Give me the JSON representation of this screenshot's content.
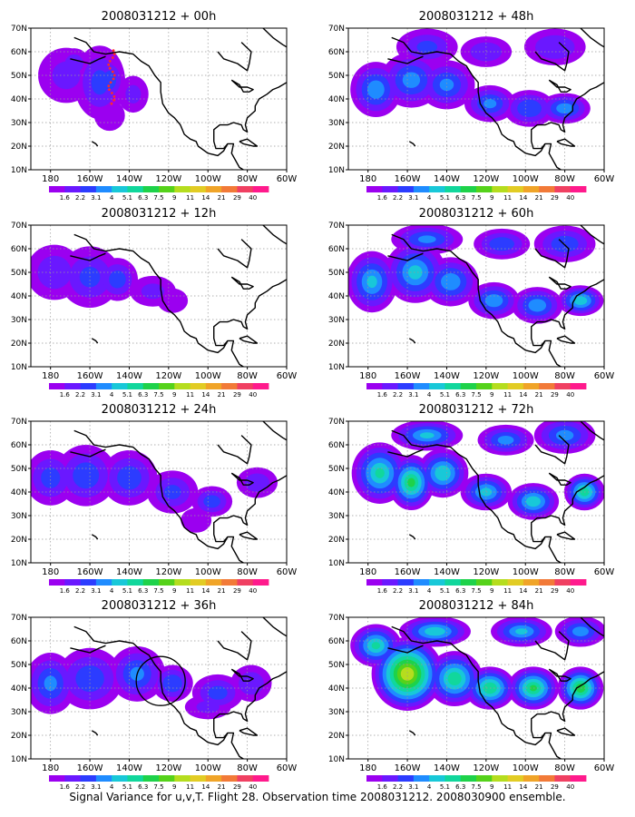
{
  "footer": "Signal Variance for u,v,T. Flight 28. Observation time 2008031212. 2008030900 ensemble.",
  "map": {
    "lat_ticks": [
      "70N",
      "60N",
      "50N",
      "40N",
      "30N",
      "20N",
      "10N"
    ],
    "lon_ticks": [
      "180",
      "160W",
      "140W",
      "120W",
      "100W",
      "80W",
      "60W"
    ]
  },
  "colorbar": {
    "labels": [
      "1.6",
      "2.2",
      "3.1",
      "4",
      "5.1",
      "6.3",
      "7.5",
      "9",
      "11",
      "14",
      "21",
      "29",
      "40"
    ],
    "colors": [
      "#9b00f0",
      "#6a18ff",
      "#2c3cff",
      "#1f8cff",
      "#18c8d8",
      "#11d79c",
      "#1ed24a",
      "#55d21a",
      "#b5dd1e",
      "#e2cc24",
      "#f0a428",
      "#f27a38",
      "#f04062",
      "#ff1a8c"
    ]
  },
  "chart_data": [
    {
      "type": "heatmap",
      "title": "2008031212 + 00h",
      "lead_hours": 0,
      "x_range": [
        -190,
        -60
      ],
      "y_range": [
        10,
        70
      ],
      "blobs": [
        [
          -172,
          50,
          11,
          9,
          1
        ],
        [
          -155,
          47,
          10,
          12,
          2
        ],
        [
          -150,
          48,
          6,
          7,
          2.5
        ],
        [
          -168,
          55,
          6,
          5,
          1.5
        ],
        [
          -138,
          42,
          6,
          6,
          1
        ],
        [
          -150,
          33,
          6,
          5,
          0.8
        ]
      ],
      "annotation": "red dotted flight track near 150W"
    },
    {
      "type": "heatmap",
      "title": "2008031212 + 12h",
      "lead_hours": 12,
      "x_range": [
        -190,
        -60
      ],
      "y_range": [
        10,
        70
      ],
      "blobs": [
        [
          -178,
          50,
          11,
          9,
          1.5
        ],
        [
          -160,
          48,
          12,
          10,
          2
        ],
        [
          -146,
          47,
          8,
          7,
          2.4
        ],
        [
          -128,
          42,
          9,
          5,
          1
        ],
        [
          -118,
          38,
          6,
          4,
          0.8
        ]
      ]
    },
    {
      "type": "heatmap",
      "title": "2008031212 + 24h",
      "lead_hours": 24,
      "x_range": [
        -190,
        -60
      ],
      "y_range": [
        10,
        70
      ],
      "blobs": [
        [
          -180,
          46,
          10,
          9,
          2.2
        ],
        [
          -162,
          47,
          12,
          10,
          2.5
        ],
        [
          -140,
          46,
          11,
          9,
          2.5
        ],
        [
          -118,
          40,
          10,
          7,
          2
        ],
        [
          -98,
          36,
          8,
          5,
          2.4
        ],
        [
          -75,
          44,
          8,
          5,
          1.5
        ],
        [
          -106,
          28,
          6,
          4,
          0.8
        ]
      ]
    },
    {
      "type": "heatmap",
      "title": "2008031212 + 36h",
      "lead_hours": 36,
      "x_range": [
        -190,
        -60
      ],
      "y_range": [
        10,
        70
      ],
      "blobs": [
        [
          -180,
          42,
          10,
          10,
          3
        ],
        [
          -160,
          44,
          13,
          10,
          2.5
        ],
        [
          -136,
          46,
          11,
          9,
          3
        ],
        [
          -118,
          42,
          8,
          6,
          2.8
        ],
        [
          -95,
          38,
          10,
          6,
          2.2
        ],
        [
          -78,
          42,
          8,
          6,
          1.6
        ],
        [
          -100,
          32,
          9,
          4,
          1
        ]
      ],
      "annotation": "black circle around Pacific Northwest coast"
    },
    {
      "type": "heatmap",
      "title": "2008031212 + 48h",
      "lead_hours": 48,
      "x_range": [
        -190,
        -60
      ],
      "y_range": [
        10,
        70
      ],
      "blobs": [
        [
          -176,
          44,
          10,
          9,
          3.5
        ],
        [
          -158,
          48,
          12,
          9,
          3.2
        ],
        [
          -140,
          46,
          11,
          8,
          3
        ],
        [
          -118,
          38,
          10,
          6,
          3
        ],
        [
          -98,
          36,
          10,
          6,
          2.8
        ],
        [
          -80,
          36,
          10,
          5,
          3.5
        ],
        [
          -150,
          62,
          12,
          6,
          2
        ],
        [
          -120,
          60,
          10,
          5,
          1.6
        ],
        [
          -85,
          62,
          12,
          6,
          1.8
        ]
      ]
    },
    {
      "type": "heatmap",
      "title": "2008031212 + 60h",
      "lead_hours": 60,
      "x_range": [
        -190,
        -60
      ],
      "y_range": [
        10,
        70
      ],
      "blobs": [
        [
          -178,
          46,
          10,
          10,
          4
        ],
        [
          -156,
          50,
          12,
          10,
          4.2
        ],
        [
          -138,
          46,
          11,
          8,
          3.6
        ],
        [
          -116,
          38,
          10,
          6,
          3.6
        ],
        [
          -94,
          36,
          10,
          6,
          3.6
        ],
        [
          -72,
          38,
          9,
          5,
          4.6
        ],
        [
          -150,
          64,
          14,
          5,
          3
        ],
        [
          -112,
          62,
          11,
          5,
          2.6
        ],
        [
          -80,
          62,
          12,
          6,
          2.6
        ]
      ]
    },
    {
      "type": "heatmap",
      "title": "2008031212 + 72h",
      "lead_hours": 72,
      "x_range": [
        -190,
        -60
      ],
      "y_range": [
        10,
        70
      ],
      "blobs": [
        [
          -174,
          48,
          11,
          10,
          5
        ],
        [
          -158,
          44,
          9,
          9,
          6.2
        ],
        [
          -142,
          48,
          10,
          8,
          4.8
        ],
        [
          -120,
          40,
          10,
          6,
          4.2
        ],
        [
          -96,
          36,
          10,
          6,
          4.6
        ],
        [
          -70,
          40,
          8,
          6,
          5.5
        ],
        [
          -150,
          64,
          14,
          5,
          4
        ],
        [
          -110,
          62,
          11,
          5,
          3.2
        ],
        [
          -80,
          64,
          12,
          6,
          3.2
        ]
      ]
    },
    {
      "type": "heatmap",
      "title": "2008031212 + 84h",
      "lead_hours": 84,
      "x_range": [
        -190,
        -60
      ],
      "y_range": [
        10,
        70
      ],
      "blobs": [
        [
          -160,
          46,
          14,
          12,
          8.8
        ],
        [
          -176,
          58,
          10,
          7,
          5
        ],
        [
          -136,
          44,
          11,
          9,
          5.6
        ],
        [
          -118,
          40,
          10,
          7,
          5.8
        ],
        [
          -96,
          40,
          10,
          7,
          6
        ],
        [
          -72,
          40,
          9,
          7,
          6.6
        ],
        [
          -146,
          64,
          14,
          5,
          4.6
        ],
        [
          -102,
          64,
          12,
          5,
          4
        ],
        [
          -72,
          64,
          10,
          5,
          3.4
        ]
      ]
    }
  ]
}
